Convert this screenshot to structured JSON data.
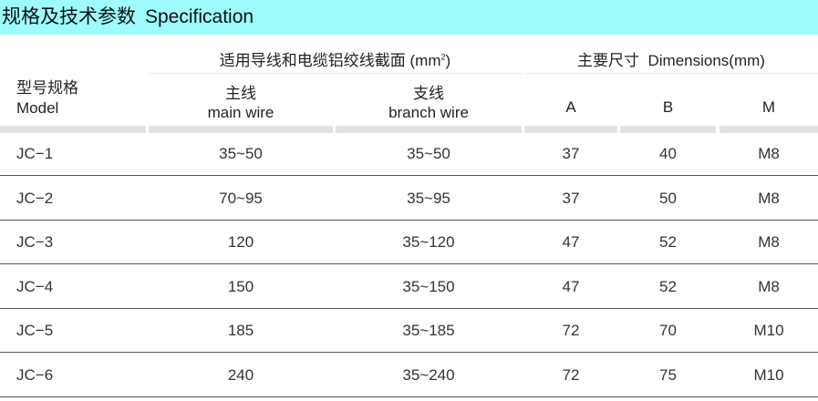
{
  "title": {
    "cn": "规格及技术参数",
    "en": "Specification"
  },
  "header": {
    "model_cn": "型号规格",
    "model_en": "Model",
    "section_group": {
      "label": "适用导线和电缆铝绞线截面 (mm",
      "sup": "2",
      "close": ")"
    },
    "dimension_group": "主要尺寸  Dimensions(mm)",
    "main_cn": "主线",
    "main_en": "main wire",
    "branch_cn": "支线",
    "branch_en": "branch wire",
    "a": "A",
    "b": "B",
    "m": "M"
  },
  "rows": [
    [
      "JC−1",
      "35~50",
      "35~50",
      "37",
      "40",
      "M8"
    ],
    [
      "JC−2",
      "70~95",
      "35~95",
      "37",
      "50",
      "M8"
    ],
    [
      "JC−3",
      "120",
      "35~120",
      "47",
      "52",
      "M8"
    ],
    [
      "JC−4",
      "150",
      "35~150",
      "47",
      "52",
      "M8"
    ],
    [
      "JC−5",
      "185",
      "35~185",
      "72",
      "70",
      "M10"
    ],
    [
      "JC−6",
      "240",
      "35~240",
      "72",
      "75",
      "M10"
    ]
  ],
  "colors": {
    "title_bg": "#9ffcfd",
    "header_bar": "#e3e3e3",
    "row_line": "#555555"
  }
}
